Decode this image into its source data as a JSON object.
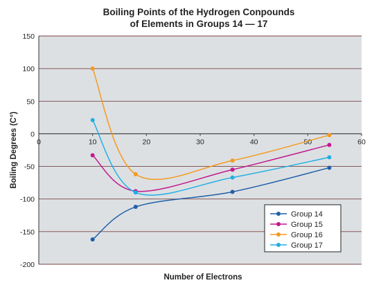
{
  "chart_data": {
    "type": "line",
    "title": [
      "Boiling Points of the Hydrogen Conpounds",
      "of Elements in Groups 14 — 17"
    ],
    "xlabel": "Number of Electrons",
    "ylabel": "Boiling Degrees (C°)",
    "xlim": [
      0,
      60
    ],
    "ylim": [
      -200,
      150
    ],
    "xticks": [
      0,
      10,
      20,
      30,
      40,
      50,
      60
    ],
    "yticks": [
      150,
      100,
      50,
      0,
      -50,
      -100,
      -150,
      -200
    ],
    "grid": "horizontal",
    "legend_position": "bottom-right",
    "plot_background": "#dde0e3",
    "series": [
      {
        "name": "Group 14",
        "color": "#1f5fa8",
        "x": [
          10,
          18,
          36,
          54
        ],
        "y": [
          -162,
          -112,
          -89,
          -52
        ]
      },
      {
        "name": "Group 15",
        "color": "#c2188f",
        "x": [
          10,
          18,
          36,
          54
        ],
        "y": [
          -33,
          -88,
          -55,
          -17
        ]
      },
      {
        "name": "Group 16",
        "color": "#f39a1e",
        "x": [
          10,
          18,
          36,
          54
        ],
        "y": [
          100,
          -62,
          -41,
          -2
        ]
      },
      {
        "name": "Group 17",
        "color": "#22aee4",
        "x": [
          10,
          18,
          36,
          54
        ],
        "y": [
          21,
          -90,
          -67,
          -36
        ]
      }
    ]
  }
}
